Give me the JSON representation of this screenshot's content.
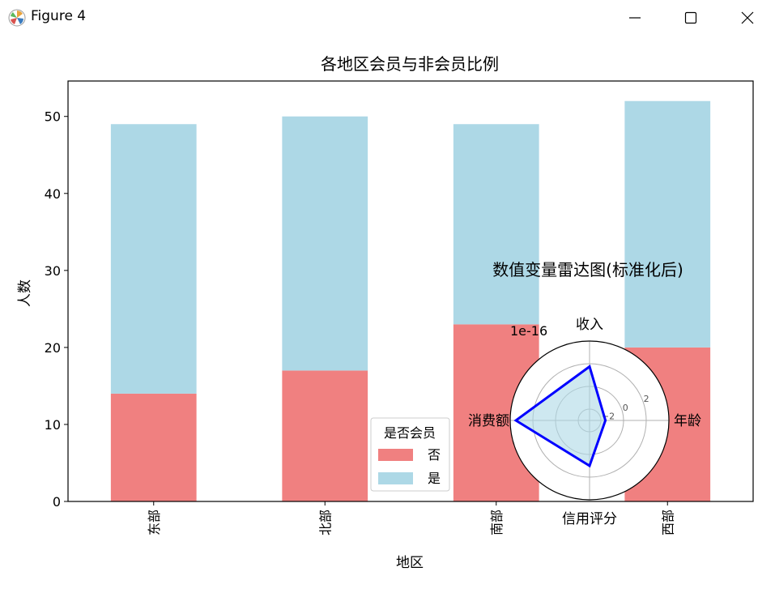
{
  "window": {
    "title": "Figure 4",
    "icon": "matplotlib-logo-icon",
    "controls": [
      "minimize-icon",
      "maximize-icon",
      "close-icon"
    ]
  },
  "chart_data": [
    {
      "type": "bar",
      "stacked": true,
      "title": "各地区会员与非会员比例",
      "xlabel": "地区",
      "ylabel": "人数",
      "categories": [
        "东部",
        "北部",
        "南部",
        "西部"
      ],
      "series": [
        {
          "name": "否",
          "values": [
            14,
            17,
            23,
            20
          ],
          "color": "#f08080"
        },
        {
          "name": "是",
          "values": [
            35,
            33,
            26,
            32
          ],
          "color": "#add8e6"
        }
      ],
      "ylim": [
        0,
        54.6
      ],
      "yticks": [
        0,
        10,
        20,
        30,
        40,
        50
      ],
      "grid": false,
      "legend": {
        "title": "是否会员",
        "placement": "lower-center-right"
      }
    },
    {
      "type": "radar",
      "title": "数值变量雷达图(标准化后)",
      "axes": [
        "年龄",
        "收入",
        "消费额",
        "信用评分"
      ],
      "values": [
        -1.6,
        1.75,
        3.5,
        1.0
      ],
      "scale_label": "1e-16",
      "rticks": [
        -2,
        0,
        2
      ],
      "rlim": [
        -3,
        4
      ],
      "line_color": "#0000ff",
      "fill_color": "#add8e6"
    }
  ]
}
